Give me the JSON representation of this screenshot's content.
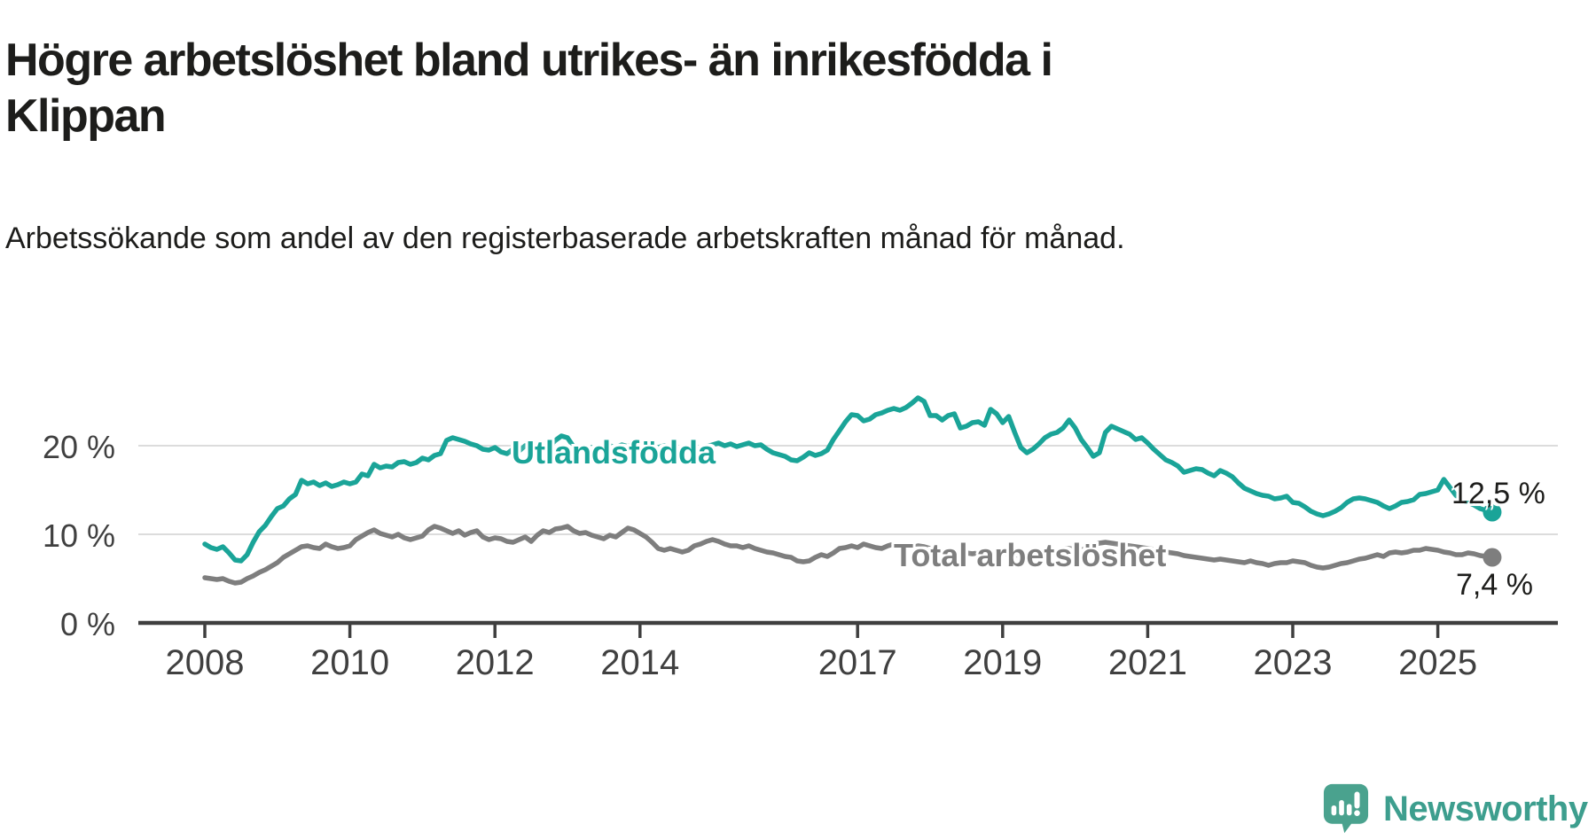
{
  "title": "Högre arbetslöshet bland utrikes- än inrikesfödda i Klippan",
  "subtitle": "Arbetssökande som andel av den registerbaserade arbetskraften månad för månad.",
  "branding": {
    "logo_text": "Newsworthy"
  },
  "colors": {
    "foreign_born_line": "#1aa498",
    "total_line": "#7e7e7e",
    "axis": "#3f3f3f",
    "gridline": "#dcdcdc",
    "text_dark": "#1d1d1b",
    "tick_text": "#404040",
    "logo_teal": "#4aa28e"
  },
  "chart_data": {
    "type": "line",
    "title": "Högre arbetslöshet bland utrikes- än inrikesfödda i Klippan",
    "subtitle": "Arbetssökande som andel av den registerbaserade arbetskraften månad för månad.",
    "x_start": "2008-01",
    "x_end": "2025-10",
    "x_unit": "month",
    "ylim": [
      0,
      27
    ],
    "grid": "horizontal",
    "y_ticks": [
      {
        "label": "0 %",
        "value": 0
      },
      {
        "label": "10 %",
        "value": 10
      },
      {
        "label": "20 %",
        "value": 20
      }
    ],
    "x_ticks": [
      {
        "label": "2008",
        "year": 2008
      },
      {
        "label": "2010",
        "year": 2010
      },
      {
        "label": "2012",
        "year": 2012
      },
      {
        "label": "2014",
        "year": 2014
      },
      {
        "label": "2017",
        "year": 2017
      },
      {
        "label": "2019",
        "year": 2019
      },
      {
        "label": "2021",
        "year": 2021
      },
      {
        "label": "2023",
        "year": 2023
      },
      {
        "label": "2025",
        "year": 2025
      }
    ],
    "series": [
      {
        "name": "Utlandsfödda",
        "color": "#1aa498",
        "end_label": "12,5 %",
        "end_value": 12.5,
        "values": [
          8.9,
          8.5,
          8.3,
          8.6,
          7.9,
          7.1,
          7.0,
          7.7,
          9.1,
          10.3,
          11.0,
          12.0,
          12.9,
          13.2,
          14.0,
          14.5,
          16.1,
          15.7,
          15.9,
          15.5,
          15.8,
          15.4,
          15.6,
          15.9,
          15.7,
          15.9,
          16.8,
          16.6,
          17.9,
          17.5,
          17.7,
          17.6,
          18.1,
          18.2,
          17.9,
          18.1,
          18.6,
          18.4,
          18.9,
          19.1,
          20.6,
          20.9,
          20.7,
          20.5,
          20.2,
          20.0,
          19.6,
          19.5,
          19.8,
          19.3,
          19.1,
          19.6,
          19.4,
          20.0,
          19.7,
          19.5,
          19.6,
          19.9,
          20.6,
          21.1,
          20.9,
          19.9,
          19.6,
          19.7,
          19.8,
          19.6,
          19.8,
          20.0,
          19.8,
          20.1,
          19.9,
          20.2,
          20.1,
          19.8,
          19.6,
          19.8,
          20.0,
          19.7,
          19.9,
          19.6,
          19.8,
          20.0,
          19.7,
          19.9,
          20.1,
          20.3,
          20.0,
          20.2,
          19.9,
          20.1,
          20.3,
          20.0,
          20.1,
          19.6,
          19.2,
          19.0,
          18.8,
          18.4,
          18.3,
          18.7,
          19.2,
          18.9,
          19.1,
          19.5,
          20.7,
          21.7,
          22.7,
          23.5,
          23.4,
          22.8,
          23.0,
          23.5,
          23.7,
          24.0,
          24.2,
          24.0,
          24.3,
          24.8,
          25.4,
          25.0,
          23.4,
          23.4,
          22.9,
          23.4,
          23.6,
          22.0,
          22.2,
          22.6,
          22.7,
          22.3,
          24.1,
          23.6,
          22.6,
          23.3,
          21.5,
          19.8,
          19.2,
          19.6,
          20.2,
          20.9,
          21.3,
          21.5,
          22.0,
          22.9,
          22.0,
          20.7,
          19.8,
          18.8,
          19.2,
          21.5,
          22.2,
          21.9,
          21.6,
          21.3,
          20.7,
          20.9,
          20.3,
          19.6,
          19.0,
          18.4,
          18.1,
          17.7,
          17.0,
          17.2,
          17.4,
          17.3,
          16.9,
          16.6,
          17.2,
          16.9,
          16.5,
          15.8,
          15.2,
          14.9,
          14.6,
          14.4,
          14.3,
          14.0,
          14.1,
          14.3,
          13.6,
          13.5,
          13.1,
          12.6,
          12.3,
          12.1,
          12.3,
          12.6,
          13.0,
          13.6,
          14.0,
          14.1,
          14.0,
          13.8,
          13.6,
          13.2,
          12.9,
          13.2,
          13.6,
          13.7,
          13.9,
          14.5,
          14.6,
          14.8,
          15.0,
          16.2,
          15.3,
          14.4,
          13.8,
          13.6,
          13.3,
          12.9,
          12.7,
          12.5
        ]
      },
      {
        "name": "Total arbetslöshet",
        "color": "#7e7e7e",
        "end_label": "7,4 %",
        "end_value": 7.4,
        "values": [
          5.1,
          5.0,
          4.9,
          5.0,
          4.7,
          4.5,
          4.6,
          5.0,
          5.3,
          5.7,
          6.0,
          6.4,
          6.8,
          7.4,
          7.8,
          8.2,
          8.6,
          8.7,
          8.5,
          8.4,
          8.9,
          8.6,
          8.4,
          8.5,
          8.7,
          9.4,
          9.8,
          10.2,
          10.5,
          10.1,
          9.9,
          9.7,
          10.0,
          9.6,
          9.4,
          9.6,
          9.8,
          10.5,
          10.9,
          10.7,
          10.4,
          10.1,
          10.4,
          9.9,
          10.2,
          10.4,
          9.7,
          9.4,
          9.6,
          9.5,
          9.2,
          9.1,
          9.4,
          9.7,
          9.2,
          9.9,
          10.4,
          10.2,
          10.6,
          10.7,
          10.9,
          10.4,
          10.1,
          10.2,
          9.9,
          9.7,
          9.5,
          9.9,
          9.7,
          10.2,
          10.7,
          10.5,
          10.1,
          9.7,
          9.1,
          8.4,
          8.2,
          8.4,
          8.2,
          8.0,
          8.2,
          8.7,
          8.9,
          9.2,
          9.4,
          9.2,
          8.9,
          8.7,
          8.7,
          8.5,
          8.7,
          8.4,
          8.2,
          8.0,
          7.9,
          7.7,
          7.5,
          7.4,
          7.0,
          6.9,
          7.0,
          7.4,
          7.7,
          7.5,
          7.9,
          8.4,
          8.5,
          8.7,
          8.5,
          8.9,
          8.7,
          8.5,
          8.4,
          8.7,
          8.9,
          8.8,
          8.6,
          8.5,
          8.7,
          8.6,
          8.4,
          8.3,
          8.2,
          8.0,
          8.1,
          8.0,
          7.9,
          7.8,
          7.9,
          8.0,
          8.1,
          8.0,
          7.9,
          7.8,
          7.7,
          7.6,
          7.7,
          7.8,
          7.9,
          8.0,
          8.1,
          8.2,
          8.3,
          8.4,
          8.3,
          8.2,
          8.5,
          8.8,
          9.0,
          9.1,
          9.0,
          8.9,
          8.8,
          8.7,
          8.6,
          8.5,
          8.4,
          8.3,
          8.2,
          8.0,
          7.9,
          7.8,
          7.6,
          7.5,
          7.4,
          7.3,
          7.2,
          7.1,
          7.2,
          7.1,
          7.0,
          6.9,
          6.8,
          7.0,
          6.8,
          6.7,
          6.5,
          6.7,
          6.8,
          6.8,
          7.0,
          6.9,
          6.8,
          6.5,
          6.3,
          6.2,
          6.3,
          6.5,
          6.7,
          6.8,
          7.0,
          7.2,
          7.3,
          7.5,
          7.7,
          7.5,
          7.9,
          8.0,
          7.9,
          8.0,
          8.2,
          8.2,
          8.4,
          8.3,
          8.2,
          8.0,
          7.9,
          7.7,
          7.7,
          7.9,
          7.8,
          7.6,
          7.5,
          7.4
        ]
      }
    ]
  }
}
